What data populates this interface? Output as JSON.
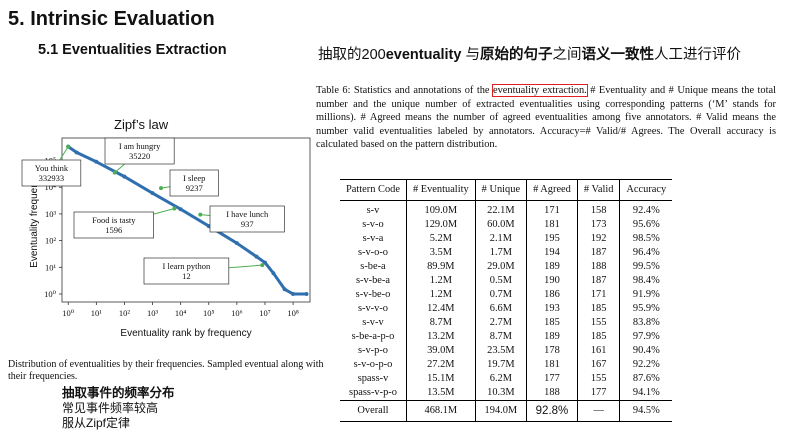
{
  "heading": "5. Intrinsic Evaluation",
  "subheading": "5.1 Eventualities Extraction",
  "zh_title": {
    "part1": "抽取的200",
    "part2": "eventuality",
    "part3": " 与",
    "part4": "原始的句子",
    "part5": "之间",
    "part6": "语义一致性",
    "part7": "人工进行评价"
  },
  "chart_data": {
    "type": "scatter",
    "title": "Zipf’s law",
    "xlabel": "Eventuality rank by frequency",
    "ylabel": "Eventuality frequency",
    "x_scale": "log",
    "y_scale": "log",
    "xticks": [
      "10⁰",
      "10¹",
      "10²",
      "10³",
      "10⁴",
      "10⁵",
      "10⁶",
      "10⁷",
      "10⁸"
    ],
    "yticks": [
      "10⁰",
      "10¹",
      "10²",
      "10³",
      "10⁴",
      "10⁵"
    ],
    "xlim": [
      0.6,
      400000000.0
    ],
    "ylim": [
      0.5,
      700000.0
    ],
    "series": [
      {
        "x": [
          1,
          2,
          10,
          100,
          1000,
          10000,
          100000,
          1000000,
          5000000,
          10000000,
          20000000,
          50000000,
          100000000,
          300000000
        ],
        "y": [
          332933,
          200000,
          90000,
          25000,
          6000,
          1500,
          350,
          80,
          25,
          15,
          6,
          1.5,
          1,
          1
        ]
      }
    ],
    "annotations": [
      {
        "text": "You think\n332933",
        "x": 1,
        "y": 332933
      },
      {
        "text": "I am hungry\n35220",
        "x": 45,
        "y": 35220
      },
      {
        "text": "I sleep\n9237",
        "x": 2000,
        "y": 9237
      },
      {
        "text": "I have lunch\n937",
        "x": 50000,
        "y": 937
      },
      {
        "text": "Food is tasty\n1596",
        "x": 6000,
        "y": 1596
      },
      {
        "text": "I learn python\n12",
        "x": 8000000,
        "y": 12
      }
    ],
    "grid": false,
    "color": "#2f6fb0"
  },
  "left_caption": "Distribution of eventualities by their frequencies. Sampled eventual along with their frequencies.",
  "zh_notes": {
    "line1": "抽取事件的频率分布",
    "line2": "常见事件频率较高",
    "line3": "服从Zipf定律"
  },
  "table_caption": {
    "prefix": "Table 6: Statistics and annotations of the ",
    "highlight": "eventuality extraction.",
    "rest": " # Eventuality and # Unique means the total number and the unique number of extracted eventualities using corresponding patterns (‘M’ stands for millions). # Agreed means the number of agreed eventualities among five annotators. # Valid means the number valid eventualities labeled by annotators. Accuracy=# Valid/# Agrees. The Overall accuracy is calculated based on the pattern distribution."
  },
  "table": {
    "headers": [
      "Pattern Code",
      "# Eventuality",
      "# Unique",
      "# Agreed",
      "# Valid",
      "Accuracy"
    ],
    "rows": [
      [
        "s-v",
        "109.0M",
        "22.1M",
        "171",
        "158",
        "92.4%"
      ],
      [
        "s-v-o",
        "129.0M",
        "60.0M",
        "181",
        "173",
        "95.6%"
      ],
      [
        "s-v-a",
        "5.2M",
        "2.1M",
        "195",
        "192",
        "98.5%"
      ],
      [
        "s-v-o-o",
        "3.5M",
        "1.7M",
        "194",
        "187",
        "96.4%"
      ],
      [
        "s-be-a",
        "89.9M",
        "29.0M",
        "189",
        "188",
        "99.5%"
      ],
      [
        "s-v-be-a",
        "1.2M",
        "0.5M",
        "190",
        "187",
        "98.4%"
      ],
      [
        "s-v-be-o",
        "1.2M",
        "0.7M",
        "186",
        "171",
        "91.9%"
      ],
      [
        "s-v-v-o",
        "12.4M",
        "6.6M",
        "193",
        "185",
        "95.9%"
      ],
      [
        "s-v-v",
        "8.7M",
        "2.7M",
        "185",
        "155",
        "83.8%"
      ],
      [
        "s-be-a-p-o",
        "13.2M",
        "8.7M",
        "189",
        "185",
        "97.9%"
      ],
      [
        "s-v-p-o",
        "39.0M",
        "23.5M",
        "178",
        "161",
        "90.4%"
      ],
      [
        "s-v-o-p-o",
        "27.2M",
        "19.7M",
        "181",
        "167",
        "92.2%"
      ],
      [
        "spass-v",
        "15.1M",
        "6.2M",
        "177",
        "155",
        "87.6%"
      ],
      [
        "spass-v-p-o",
        "13.5M",
        "10.3M",
        "188",
        "177",
        "94.1%"
      ]
    ],
    "overall": [
      "Overall",
      "468.1M",
      "194.0M",
      "92.8%",
      "—",
      "94.5%"
    ]
  }
}
